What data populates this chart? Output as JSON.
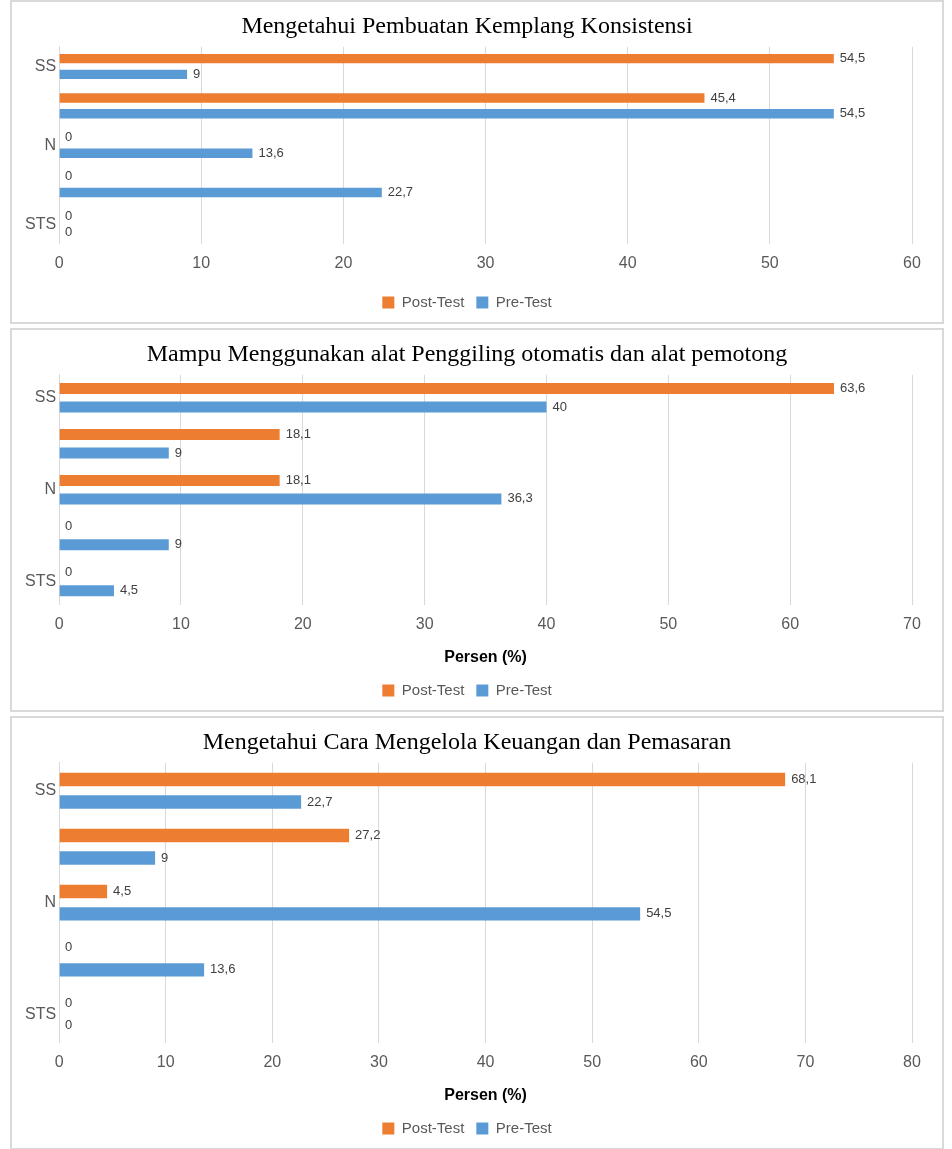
{
  "chart_data": [
    {
      "type": "bar",
      "orientation": "horizontal",
      "title": "Mengetahui Pembuatan Kemplang Konsistensi",
      "categories": [
        "SS",
        null,
        "N",
        null,
        "STS"
      ],
      "series": [
        {
          "name": "Post-Test",
          "color": "#ed7d31",
          "values": [
            54.5,
            45.4,
            0,
            0,
            0
          ],
          "value_labels": [
            "54,5",
            "45,4",
            "0",
            "0",
            "0"
          ]
        },
        {
          "name": "Pre-Test",
          "color": "#5b9bd5",
          "values": [
            9,
            54.5,
            13.6,
            22.7,
            0
          ],
          "value_labels": [
            "9",
            "54,5",
            "13,6",
            "22,7",
            "0"
          ]
        }
      ],
      "xlim": [
        0,
        60
      ],
      "xticks": [
        0,
        10,
        20,
        30,
        40,
        50,
        60
      ],
      "grid": "x",
      "legend": "bottom"
    },
    {
      "type": "bar",
      "orientation": "horizontal",
      "title": "Mampu Menggunakan alat Penggiling otomatis dan alat pemotong",
      "xlabel": "Persen (%)",
      "categories": [
        "SS",
        null,
        "N",
        null,
        "STS"
      ],
      "series": [
        {
          "name": "Post-Test",
          "color": "#ed7d31",
          "values": [
            63.6,
            18.1,
            18.1,
            0,
            0
          ],
          "value_labels": [
            "63,6",
            "18,1",
            "18,1",
            "0",
            "0"
          ]
        },
        {
          "name": "Pre-Test",
          "color": "#5b9bd5",
          "values": [
            40,
            9,
            36.3,
            9,
            4.5
          ],
          "value_labels": [
            "40",
            "9",
            "36,3",
            "9",
            "4,5"
          ]
        }
      ],
      "xlim": [
        0,
        70
      ],
      "xticks": [
        0,
        10,
        20,
        30,
        40,
        50,
        60,
        70
      ],
      "grid": "x",
      "legend": "bottom"
    },
    {
      "type": "bar",
      "orientation": "horizontal",
      "title": "Mengetahui Cara Mengelola Keuangan dan Pemasaran",
      "xlabel": "Persen (%)",
      "categories": [
        "SS",
        null,
        "N",
        null,
        "STS"
      ],
      "series": [
        {
          "name": "Post-Test",
          "color": "#ed7d31",
          "values": [
            68.1,
            27.2,
            4.5,
            0,
            0
          ],
          "value_labels": [
            "68,1",
            "27,2",
            "4,5",
            "0",
            "0"
          ]
        },
        {
          "name": "Pre-Test",
          "color": "#5b9bd5",
          "values": [
            22.7,
            9,
            54.5,
            13.6,
            0
          ],
          "value_labels": [
            "22,7",
            "9",
            "54,5",
            "13,6",
            "0"
          ]
        }
      ],
      "xlim": [
        0,
        80
      ],
      "xticks": [
        0,
        10,
        20,
        30,
        40,
        50,
        60,
        70,
        80
      ],
      "grid": "x",
      "legend": "bottom"
    }
  ]
}
